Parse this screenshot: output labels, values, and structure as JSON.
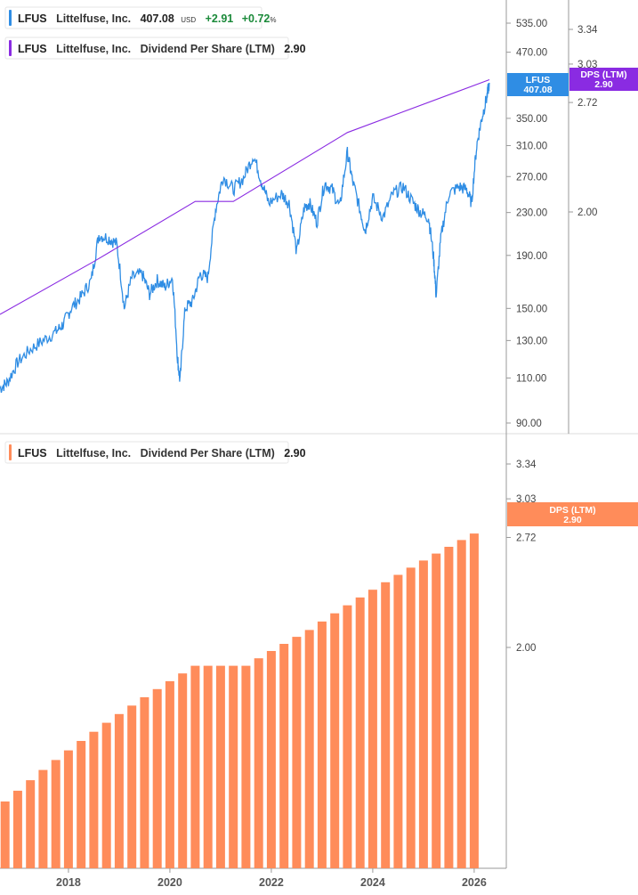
{
  "colors": {
    "price": "#2f8de4",
    "dps_line": "#8a2be2",
    "bars": "#ff8c5a",
    "positive": "#1b8a3a",
    "price_tag": "#2f8de4",
    "dps_tag": "#8a2be2"
  },
  "legend_top": {
    "price": {
      "symbol": "LFUS",
      "name": "Littelfuse, Inc.",
      "value": "407.08",
      "unit": "USD",
      "change": "+2.91",
      "change_pct": "+0.72",
      "pct_sign": "%"
    },
    "dps": {
      "symbol": "LFUS",
      "name": "Littelfuse, Inc.",
      "metric": "Dividend Per Share (LTM)",
      "value": "2.90"
    }
  },
  "legend_bottom": {
    "symbol": "LFUS",
    "name": "Littelfuse, Inc.",
    "metric": "Dividend Per Share (LTM)",
    "value": "2.90"
  },
  "tags": {
    "price": {
      "line1": "LFUS",
      "line2": "407.08"
    },
    "dps_top": {
      "line1": "DPS (LTM)",
      "line2": "2.90"
    },
    "dps_bottom": {
      "line1": "DPS (LTM)",
      "line2": "2.90"
    }
  },
  "chart_data": [
    {
      "type": "line",
      "scale": "log",
      "y_ticks": [
        "535.00",
        "470.00",
        "350.00",
        "310.00",
        "270.00",
        "230.00",
        "190.00",
        "150.00",
        "130.00",
        "110.00",
        "90.00"
      ],
      "dps_axis_ticks": [
        "3.34",
        "3.03",
        "2.72",
        "2.00"
      ],
      "x_ticks": [
        "2018",
        "2020",
        "2022",
        "2024",
        "2026"
      ],
      "price_series": {
        "x": [
          2016.65,
          2016.8,
          2017.0,
          2017.25,
          2017.5,
          2017.75,
          2017.9,
          2018.05,
          2018.25,
          2018.45,
          2018.6,
          2018.8,
          2018.95,
          2019.1,
          2019.25,
          2019.45,
          2019.6,
          2019.75,
          2019.9,
          2020.05,
          2020.15,
          2020.2,
          2020.3,
          2020.45,
          2020.6,
          2020.75,
          2020.9,
          2021.05,
          2021.25,
          2021.45,
          2021.65,
          2021.8,
          2021.95,
          2022.2,
          2022.35,
          2022.5,
          2022.65,
          2022.75,
          2022.9,
          2023.05,
          2023.2,
          2023.35,
          2023.5,
          2023.6,
          2023.75,
          2023.85,
          2024.0,
          2024.2,
          2024.4,
          2024.6,
          2024.8,
          2024.95,
          2025.1,
          2025.2,
          2025.25,
          2025.35,
          2025.5,
          2025.7,
          2025.85,
          2025.95,
          2026.05,
          2026.15,
          2026.25,
          2026.3
        ],
        "y": [
          105,
          108,
          118,
          125,
          130,
          135,
          140,
          150,
          158,
          170,
          208,
          205,
          200,
          150,
          172,
          175,
          160,
          170,
          165,
          172,
          120,
          108,
          150,
          155,
          175,
          172,
          233,
          270,
          255,
          268,
          297,
          265,
          240,
          250,
          240,
          192,
          235,
          240,
          220,
          262,
          255,
          235,
          300,
          265,
          232,
          212,
          245,
          225,
          250,
          258,
          240,
          230,
          225,
          188,
          158,
          208,
          250,
          258,
          255,
          240,
          310,
          350,
          385,
          410
        ]
      },
      "dps_series": {
        "x": [
          2016.65,
          2018.5,
          2020.5,
          2021.25,
          2023.5,
          2026.3
        ],
        "y": [
          1.5,
          1.74,
          2.06,
          2.06,
          2.5,
          2.9
        ]
      }
    },
    {
      "type": "bar",
      "scale": "log",
      "series_name": "Dividend Per Share (LTM)",
      "y_ticks": [
        "3.34",
        "3.03",
        "2.72",
        "2.00"
      ],
      "x_ticks": [
        "2018",
        "2020",
        "2022",
        "2024",
        "2026"
      ],
      "x": [
        2016.75,
        2017.0,
        2017.25,
        2017.5,
        2017.75,
        2018.0,
        2018.25,
        2018.5,
        2018.75,
        2019.0,
        2019.25,
        2019.5,
        2019.75,
        2020.0,
        2020.25,
        2020.5,
        2020.75,
        2021.0,
        2021.25,
        2021.5,
        2021.75,
        2022.0,
        2022.25,
        2022.5,
        2022.75,
        2023.0,
        2023.25,
        2023.5,
        2023.75,
        2024.0,
        2024.25,
        2024.5,
        2024.75,
        2025.0,
        2025.25,
        2025.5,
        2025.75,
        2026.0
      ],
      "values": [
        1.3,
        1.34,
        1.38,
        1.42,
        1.46,
        1.5,
        1.54,
        1.58,
        1.62,
        1.66,
        1.7,
        1.74,
        1.78,
        1.82,
        1.86,
        1.9,
        1.9,
        1.9,
        1.9,
        1.9,
        1.94,
        1.98,
        2.02,
        2.06,
        2.1,
        2.15,
        2.2,
        2.25,
        2.3,
        2.35,
        2.4,
        2.45,
        2.5,
        2.55,
        2.6,
        2.65,
        2.7,
        2.75
      ]
    }
  ]
}
